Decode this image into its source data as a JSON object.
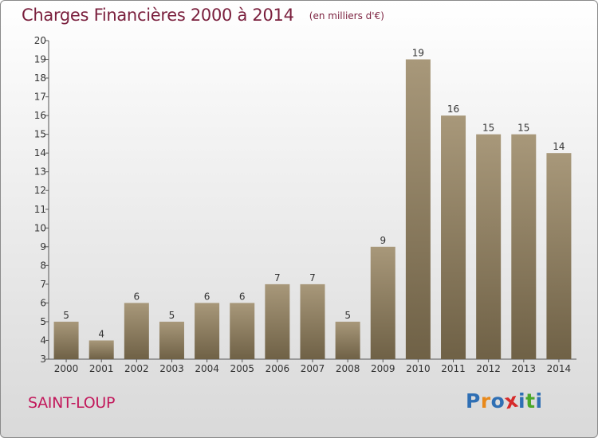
{
  "header": {
    "title": "Charges Financières 2000 à 2014",
    "subtitle": "(en milliers d'€)"
  },
  "footer": {
    "commune": "SAINT-LOUP",
    "logo_letters": [
      "P",
      "r",
      "o",
      "x",
      "i",
      "t",
      "i"
    ],
    "logo_colors": [
      "#2f6fb4",
      "#e8891b",
      "#2f6fb4",
      "#d62b2b",
      "#2f6fb4",
      "#4aa82a",
      "#2f6fb4"
    ]
  },
  "colors": {
    "bar_top": "#a8987a",
    "bar_bottom": "#6f6146",
    "label": "#333333",
    "axis": "#555555"
  },
  "chart_data": {
    "type": "bar",
    "categories": [
      "2000",
      "2001",
      "2002",
      "2003",
      "2004",
      "2005",
      "2006",
      "2007",
      "2008",
      "2009",
      "2010",
      "2011",
      "2012",
      "2013",
      "2014"
    ],
    "values": [
      5,
      4,
      6,
      5,
      6,
      6,
      7,
      7,
      5,
      9,
      19,
      16,
      15,
      15,
      14
    ],
    "ylim": [
      3,
      20
    ],
    "yticks": [
      3,
      4,
      5,
      6,
      7,
      8,
      9,
      10,
      11,
      12,
      13,
      14,
      15,
      16,
      17,
      18,
      19,
      20
    ],
    "grid": false,
    "data_labels": true
  }
}
